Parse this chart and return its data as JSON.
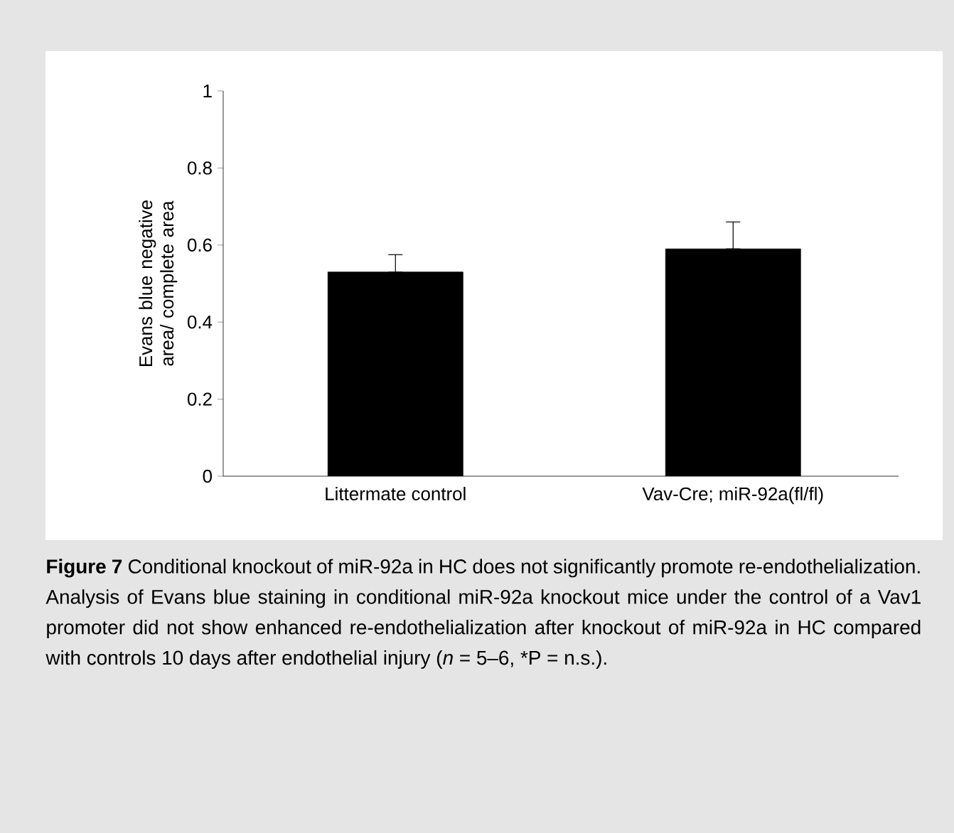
{
  "chart_data": {
    "type": "bar",
    "ylabel": "Evans blue negative area/ complete area",
    "categories": [
      "Littermate control",
      "Vav-Cre; miR-92a(fl/fl)"
    ],
    "values": [
      0.53,
      0.59
    ],
    "errors": [
      [
        0.53,
        0.575
      ],
      [
        0.59,
        0.66
      ]
    ],
    "color": "#000000",
    "ylim": [
      0,
      1
    ],
    "yticks": [
      0,
      0.2,
      0.4,
      0.6,
      0.8,
      1
    ],
    "annotations": [
      "**Figure 7** Conditional knockout of miR-92a in HC does not significantly promote re-endothelialization. Analysis of Evans blue staining in conditional miR-92a knockout mice under the control of a Vav1 promoter did not show enhanced re-endothelialization after knockout of miR-92a in HC compared with controls 10 days after endothelial injury (*n* = 5–6, *P = n.s.)."
    ]
  }
}
